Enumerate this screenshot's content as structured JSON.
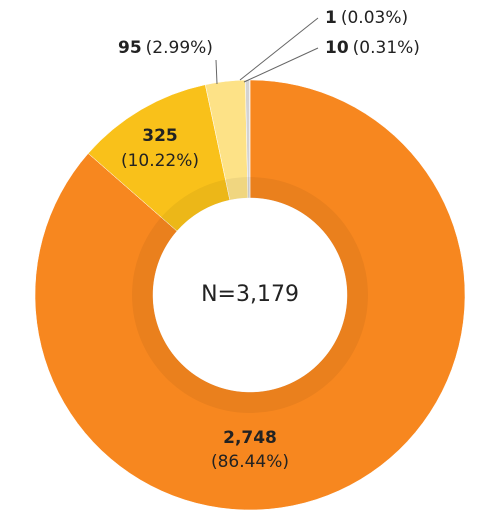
{
  "chart_data": {
    "type": "pie",
    "donut": true,
    "center_label": "N=3,179",
    "categories": [
      null,
      null,
      null,
      null,
      null
    ],
    "values": [
      2748,
      325,
      95,
      10,
      1
    ],
    "value_labels": [
      "2,748",
      "325",
      "95",
      "10",
      "1"
    ],
    "percentages": [
      86.44,
      10.22,
      2.99,
      0.31,
      0.03
    ],
    "percentage_labels": [
      "(86.44%)",
      "(10.22%)",
      "(2.99%)",
      "(0.31%)",
      "(0.03%)"
    ],
    "colors": [
      "#f7871f",
      "#f9c11a",
      "#fde287",
      "#d3d3d3",
      "#bdbdbd"
    ]
  }
}
